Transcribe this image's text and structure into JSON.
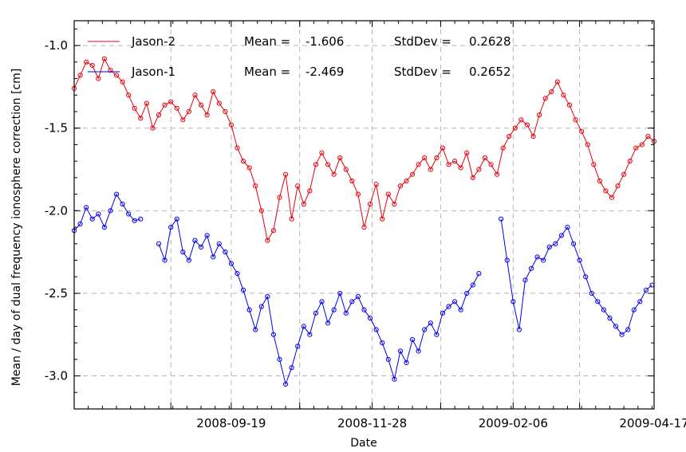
{
  "chart_data": {
    "type": "line",
    "xlabel": "Date",
    "ylabel": "Mean / day of dual frequency ionosphere correction [cm]",
    "xlim": [
      "2008-07-03",
      "2009-04-17"
    ],
    "ylim": [
      -3.2,
      -0.85
    ],
    "y_ticks": [
      -1.0,
      -1.5,
      -2.0,
      -2.5,
      -3.0
    ],
    "y_tick_labels": [
      "-1.0",
      "-1.5",
      "-2.0",
      "-2.5",
      "-3.0"
    ],
    "x_ticks": [
      "2008-09-19",
      "2008-11-28",
      "2009-02-06",
      "2009-04-17"
    ],
    "x_grid": [
      "2008-08-20",
      "2008-09-19",
      "2008-10-23",
      "2008-11-28",
      "2009-01-01",
      "2009-02-06",
      "2009-03-11",
      "2009-04-17"
    ],
    "grid": true,
    "legend_position": "top-left",
    "series": [
      {
        "name": "Jason-2",
        "color": "#e8000b",
        "marker": "circle",
        "mean_label": "Mean =",
        "mean_value": "-1.606",
        "std_label": "StdDev =",
        "std_value": "0.2628",
        "x": [
          "2008-07-03",
          "2008-07-06",
          "2008-07-09",
          "2008-07-12",
          "2008-07-15",
          "2008-07-18",
          "2008-07-21",
          "2008-07-24",
          "2008-07-27",
          "2008-07-30",
          "2008-08-02",
          "2008-08-05",
          "2008-08-08",
          "2008-08-11",
          "2008-08-14",
          "2008-08-17",
          "2008-08-20",
          "2008-08-23",
          "2008-08-26",
          "2008-08-29",
          "2008-09-01",
          "2008-09-04",
          "2008-09-07",
          "2008-09-10",
          "2008-09-13",
          "2008-09-16",
          "2008-09-19",
          "2008-09-22",
          "2008-09-25",
          "2008-09-28",
          "2008-10-01",
          "2008-10-04",
          "2008-10-07",
          "2008-10-10",
          "2008-10-13",
          "2008-10-16",
          "2008-10-19",
          "2008-10-22",
          "2008-10-25",
          "2008-10-28",
          "2008-10-31",
          "2008-11-03",
          "2008-11-06",
          "2008-11-09",
          "2008-11-12",
          "2008-11-15",
          "2008-11-18",
          "2008-11-21",
          "2008-11-24",
          "2008-11-27",
          "2008-11-30",
          "2008-12-03",
          "2008-12-06",
          "2008-12-09",
          "2008-12-12",
          "2008-12-15",
          "2008-12-18",
          "2008-12-21",
          "2008-12-24",
          "2008-12-27",
          "2008-12-30",
          "2009-01-02",
          "2009-01-05",
          "2009-01-08",
          "2009-01-11",
          "2009-01-14",
          "2009-01-17",
          "2009-01-20",
          "2009-01-23",
          "2009-01-26",
          "2009-01-29",
          "2009-02-01",
          "2009-02-04",
          "2009-02-07",
          "2009-02-10",
          "2009-02-13",
          "2009-02-16",
          "2009-02-19",
          "2009-02-22",
          "2009-02-25",
          "2009-02-28",
          "2009-03-03",
          "2009-03-06",
          "2009-03-09",
          "2009-03-12",
          "2009-03-15",
          "2009-03-18",
          "2009-03-21",
          "2009-03-24",
          "2009-03-27",
          "2009-03-30",
          "2009-04-02",
          "2009-04-05",
          "2009-04-08",
          "2009-04-11",
          "2009-04-14",
          "2009-04-17"
        ],
        "values": [
          -1.26,
          -1.18,
          -1.1,
          -1.12,
          -1.2,
          -1.08,
          -1.15,
          -1.18,
          -1.22,
          -1.3,
          -1.38,
          -1.44,
          -1.35,
          -1.5,
          -1.42,
          -1.36,
          -1.34,
          -1.38,
          -1.45,
          -1.4,
          -1.3,
          -1.36,
          -1.42,
          -1.28,
          -1.35,
          -1.4,
          -1.48,
          -1.62,
          -1.7,
          -1.74,
          -1.85,
          -2.0,
          -2.18,
          -2.12,
          -1.92,
          -1.78,
          -2.05,
          -1.85,
          -1.96,
          -1.88,
          -1.72,
          -1.65,
          -1.72,
          -1.78,
          -1.68,
          -1.75,
          -1.82,
          -1.9,
          -2.1,
          -1.96,
          -1.84,
          -2.05,
          -1.9,
          -1.96,
          -1.85,
          -1.82,
          -1.78,
          -1.72,
          -1.68,
          -1.75,
          -1.68,
          -1.62,
          -1.72,
          -1.7,
          -1.74,
          -1.65,
          -1.8,
          -1.75,
          -1.68,
          -1.72,
          -1.78,
          -1.62,
          -1.55,
          -1.5,
          -1.45,
          -1.48,
          -1.55,
          -1.42,
          -1.32,
          -1.28,
          -1.22,
          -1.3,
          -1.36,
          -1.45,
          -1.52,
          -1.6,
          -1.72,
          -1.82,
          -1.88,
          -1.92,
          -1.85,
          -1.78,
          -1.7,
          -1.62,
          -1.6,
          -1.55,
          -1.58
        ]
      },
      {
        "name": "Jason-1",
        "color": "#0000ee",
        "marker": "circle",
        "mean_label": "Mean =",
        "mean_value": "-2.469",
        "std_label": "StdDev =",
        "std_value": "0.2652",
        "x": [
          "2008-07-03",
          "2008-07-06",
          "2008-07-09",
          "2008-07-12",
          "2008-07-15",
          "2008-07-18",
          "2008-07-21",
          "2008-07-24",
          "2008-07-27",
          "2008-07-30",
          "2008-08-02",
          "2008-08-05",
          null,
          "2008-08-14",
          "2008-08-17",
          "2008-08-20",
          "2008-08-23",
          "2008-08-26",
          "2008-08-29",
          "2008-09-01",
          "2008-09-04",
          "2008-09-07",
          "2008-09-10",
          "2008-09-13",
          "2008-09-16",
          "2008-09-19",
          "2008-09-22",
          "2008-09-25",
          "2008-09-28",
          "2008-10-01",
          "2008-10-04",
          "2008-10-07",
          "2008-10-10",
          "2008-10-13",
          "2008-10-16",
          "2008-10-19",
          "2008-10-22",
          "2008-10-25",
          "2008-10-28",
          "2008-10-31",
          "2008-11-03",
          "2008-11-06",
          "2008-11-09",
          "2008-11-12",
          "2008-11-15",
          "2008-11-18",
          "2008-11-21",
          "2008-11-24",
          "2008-11-27",
          "2008-11-30",
          "2008-12-03",
          "2008-12-06",
          "2008-12-09",
          "2008-12-12",
          "2008-12-15",
          "2008-12-18",
          "2008-12-21",
          "2008-12-24",
          "2008-12-27",
          "2008-12-30",
          "2009-01-02",
          "2009-01-05",
          "2009-01-08",
          "2009-01-11",
          "2009-01-14",
          "2009-01-17",
          "2009-01-20",
          null,
          "2009-01-31",
          "2009-02-03",
          "2009-02-06",
          "2009-02-09",
          "2009-02-12",
          "2009-02-15",
          "2009-02-18",
          "2009-02-21",
          "2009-02-24",
          "2009-02-27",
          "2009-03-02",
          "2009-03-05",
          "2009-03-08",
          "2009-03-11",
          "2009-03-14",
          "2009-03-17",
          "2009-03-20",
          "2009-03-23",
          "2009-03-26",
          "2009-03-29",
          "2009-04-01",
          "2009-04-04",
          "2009-04-07",
          "2009-04-10",
          "2009-04-13",
          "2009-04-16"
        ],
        "values": [
          -2.12,
          -2.08,
          -1.98,
          -2.05,
          -2.02,
          -2.1,
          -2.0,
          -1.9,
          -1.96,
          -2.02,
          -2.06,
          -2.05,
          null,
          -2.2,
          -2.3,
          -2.1,
          -2.05,
          -2.25,
          -2.3,
          -2.18,
          -2.22,
          -2.15,
          -2.28,
          -2.2,
          -2.25,
          -2.32,
          -2.38,
          -2.48,
          -2.6,
          -2.72,
          -2.58,
          -2.52,
          -2.75,
          -2.9,
          -3.05,
          -2.95,
          -2.82,
          -2.7,
          -2.75,
          -2.62,
          -2.55,
          -2.68,
          -2.6,
          -2.5,
          -2.62,
          -2.55,
          -2.52,
          -2.6,
          -2.65,
          -2.72,
          -2.8,
          -2.9,
          -3.02,
          -2.85,
          -2.92,
          -2.78,
          -2.85,
          -2.72,
          -2.68,
          -2.75,
          -2.62,
          -2.58,
          -2.55,
          -2.6,
          -2.5,
          -2.45,
          -2.38,
          null,
          -2.05,
          -2.3,
          -2.55,
          -2.72,
          -2.42,
          -2.35,
          -2.28,
          -2.3,
          -2.22,
          -2.2,
          -2.15,
          -2.1,
          -2.2,
          -2.3,
          -2.4,
          -2.5,
          -2.55,
          -2.6,
          -2.65,
          -2.7,
          -2.75,
          -2.72,
          -2.6,
          -2.55,
          -2.48,
          -2.45
        ]
      }
    ]
  }
}
